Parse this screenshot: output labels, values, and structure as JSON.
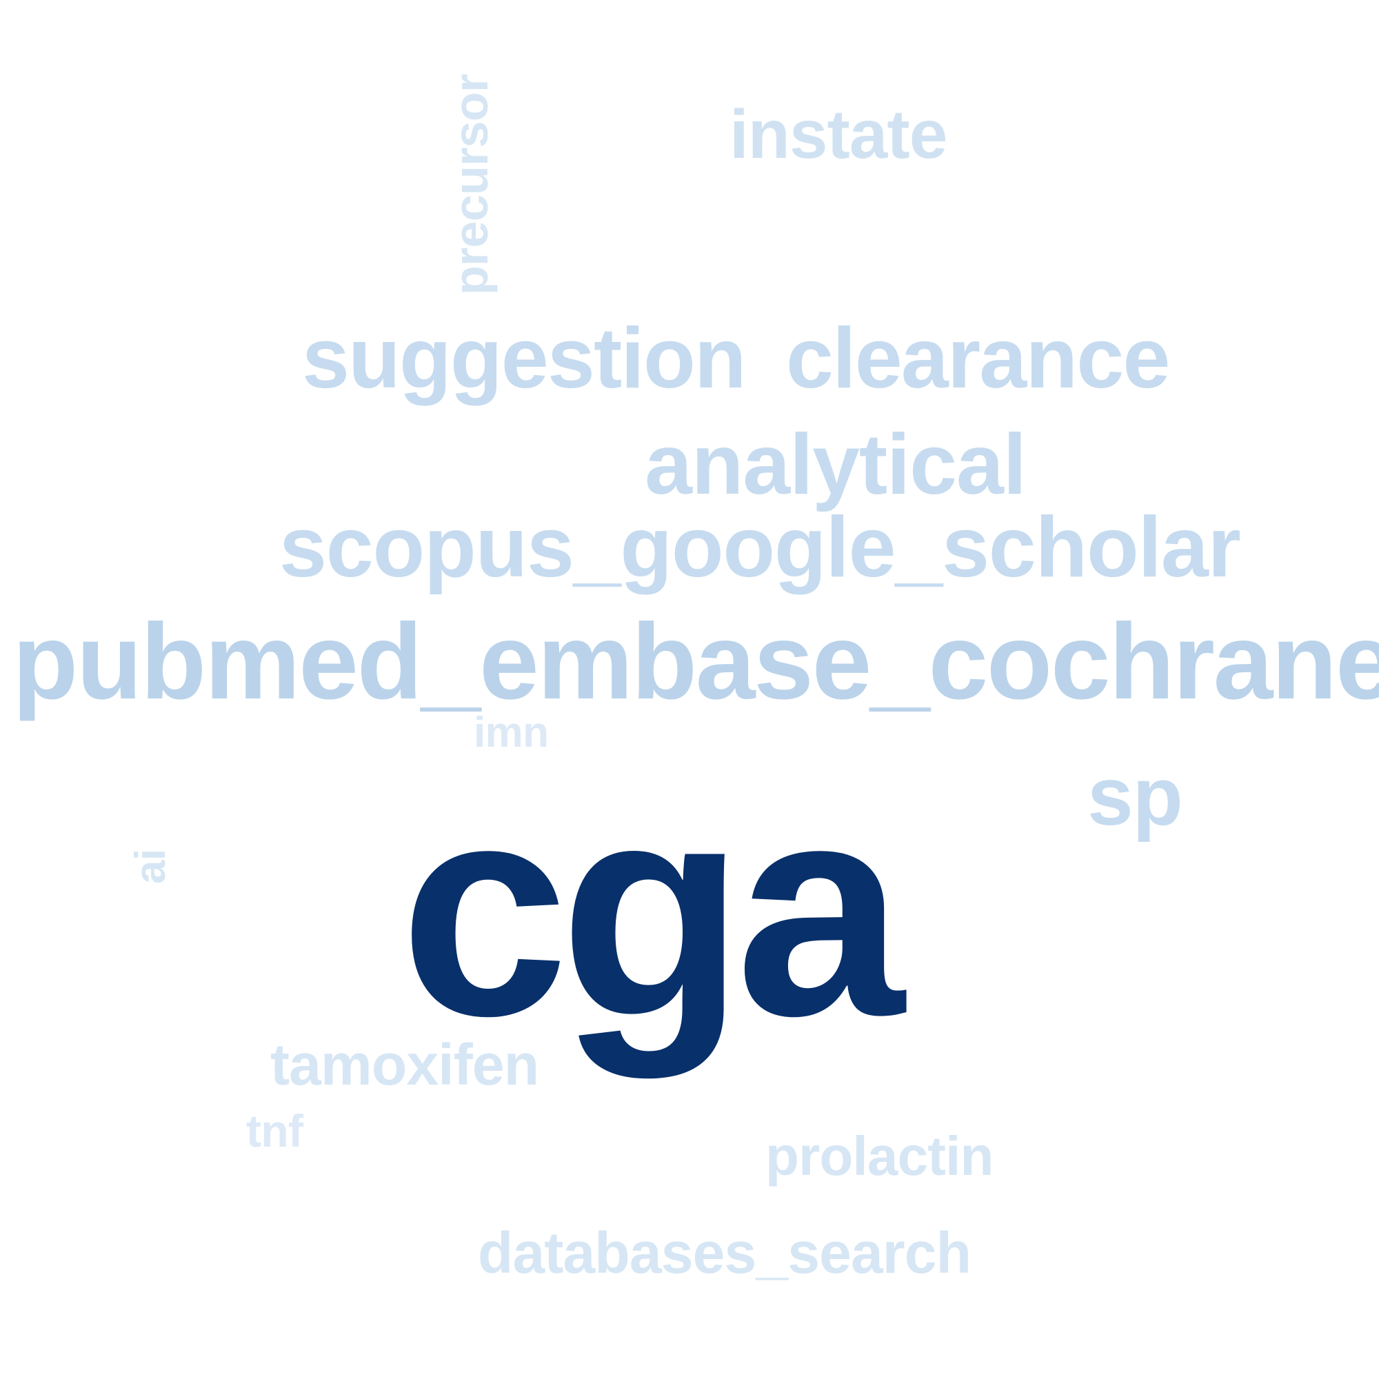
{
  "words": {
    "cga": {
      "text": "cga",
      "color": "#08306b"
    },
    "pubmed": {
      "text": "pubmed_embase_cochrane",
      "color": "#bad3ea"
    },
    "scopus": {
      "text": "scopus_google_scholar",
      "color": "#c6dbef"
    },
    "analytical": {
      "text": "analytical",
      "color": "#c6dbef"
    },
    "suggestion": {
      "text": "suggestion",
      "color": "#c6dbef"
    },
    "clearance": {
      "text": "clearance",
      "color": "#c6dbef"
    },
    "sp": {
      "text": "sp",
      "color": "#c6dbef"
    },
    "instate": {
      "text": "instate",
      "color": "#d0e2f2"
    },
    "precursor": {
      "text": "precursor",
      "color": "#d6e6f4"
    },
    "imn": {
      "text": "imn",
      "color": "#dde9f6"
    },
    "ai": {
      "text": "ai",
      "color": "#d6e6f4"
    },
    "tamoxifen": {
      "text": "tamoxifen",
      "color": "#d6e6f4"
    },
    "tnf": {
      "text": "tnf",
      "color": "#dde9f6"
    },
    "prolactin": {
      "text": "prolactin",
      "color": "#d6e6f4"
    },
    "databases": {
      "text": "databases_search",
      "color": "#d6e6f4"
    }
  }
}
